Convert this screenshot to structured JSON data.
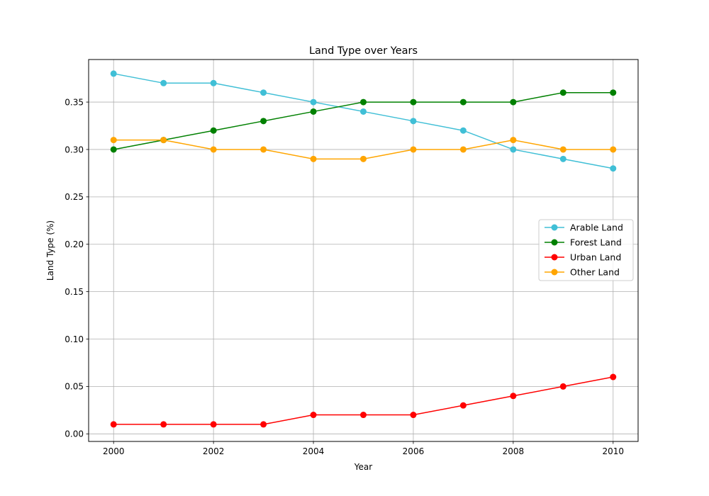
{
  "chart_data": {
    "type": "line",
    "title": "Land Type over Years",
    "xlabel": "Year",
    "ylabel": "Land Type (%)",
    "x": [
      2000,
      2001,
      2002,
      2003,
      2004,
      2005,
      2006,
      2007,
      2008,
      2009,
      2010
    ],
    "xlim": [
      1999.5,
      2010.5
    ],
    "ylim": [
      -0.008,
      0.3949
    ],
    "xticks": [
      2000,
      2002,
      2004,
      2006,
      2008,
      2010
    ],
    "yticks": [
      0.0,
      0.05,
      0.1,
      0.15,
      0.2,
      0.25,
      0.3,
      0.35
    ],
    "grid": true,
    "legend_position": "center-right",
    "series": [
      {
        "name": "Arable Land",
        "color": "#40bfd6",
        "values": [
          0.38,
          0.37,
          0.37,
          0.36,
          0.35,
          0.34,
          0.33,
          0.32,
          0.3,
          0.29,
          0.28
        ]
      },
      {
        "name": "Forest Land",
        "color": "#008000",
        "values": [
          0.3,
          0.31,
          0.32,
          0.33,
          0.34,
          0.35,
          0.35,
          0.35,
          0.35,
          0.36,
          0.36
        ]
      },
      {
        "name": "Urban Land",
        "color": "#ff0000",
        "values": [
          0.01,
          0.01,
          0.01,
          0.01,
          0.02,
          0.02,
          0.02,
          0.03,
          0.04,
          0.05,
          0.06
        ]
      },
      {
        "name": "Other Land",
        "color": "#ffa500",
        "values": [
          0.31,
          0.31,
          0.3,
          0.3,
          0.29,
          0.29,
          0.3,
          0.3,
          0.31,
          0.3,
          0.3
        ]
      }
    ]
  }
}
